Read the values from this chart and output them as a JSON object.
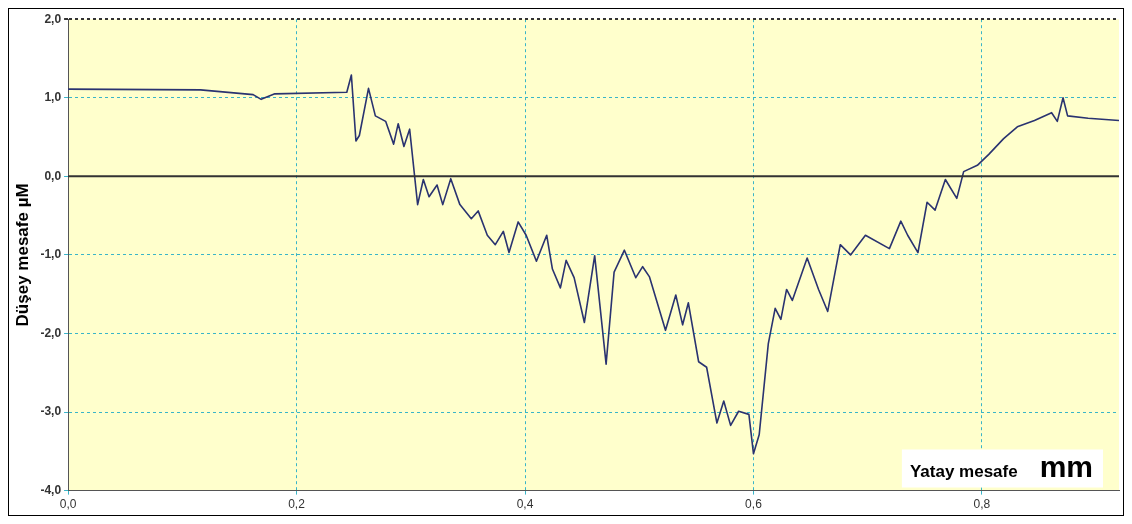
{
  "chart_data": {
    "type": "line",
    "xlabel": "Yatay mesafe mm",
    "ylabel": "Düşey mesafe µM",
    "xlim": [
      0,
      0.92
    ],
    "ylim": [
      -4,
      2
    ],
    "xticks": [
      {
        "value": 0,
        "label": "0,0"
      },
      {
        "value": 0.2,
        "label": "0,2"
      },
      {
        "value": 0.4,
        "label": "0,4"
      },
      {
        "value": 0.6,
        "label": "0,6"
      },
      {
        "value": 0.8,
        "label": "0,8"
      }
    ],
    "yticks": [
      {
        "value": -4,
        "label": "-4,0"
      },
      {
        "value": -3,
        "label": "-3,0"
      },
      {
        "value": -2,
        "label": "-2,0"
      },
      {
        "value": -1,
        "label": "-1,0"
      },
      {
        "value": 0,
        "label": "0,0"
      },
      {
        "value": 1,
        "label": "1,0"
      },
      {
        "value": 2,
        "label": "2,0"
      }
    ],
    "ref_lines": [
      {
        "axis": "y",
        "value": 0,
        "color": "#333333"
      }
    ],
    "grid": true,
    "legend": false,
    "marker": "none",
    "line_style": "solid",
    "series": [
      {
        "color": "#2a3370",
        "x": [
          0,
          0.116,
          0.162,
          0.169,
          0.181,
          0.244,
          0.248,
          0.252,
          0.255,
          0.263,
          0.269,
          0.278,
          0.285,
          0.289,
          0.294,
          0.299,
          0.306,
          0.311,
          0.316,
          0.323,
          0.328,
          0.335,
          0.343,
          0.353,
          0.359,
          0.367,
          0.374,
          0.381,
          0.386,
          0.394,
          0.401,
          0.41,
          0.419,
          0.424,
          0.431,
          0.436,
          0.443,
          0.452,
          0.461,
          0.471,
          0.478,
          0.487,
          0.497,
          0.503,
          0.509,
          0.523,
          0.532,
          0.538,
          0.543,
          0.552,
          0.559,
          0.568,
          0.574,
          0.58,
          0.587,
          0.596,
          0.6,
          0.605,
          0.613,
          0.619,
          0.624,
          0.629,
          0.634,
          0.647,
          0.657,
          0.665,
          0.676,
          0.685,
          0.698,
          0.719,
          0.729,
          0.735,
          0.744,
          0.752,
          0.759,
          0.768,
          0.778,
          0.784,
          0.796,
          0.806,
          0.819,
          0.831,
          0.846,
          0.861,
          0.866,
          0.871,
          0.875,
          0.893,
          0.92
        ],
        "values": [
          1.11,
          1.1,
          1.04,
          0.98,
          1.05,
          1.07,
          1.29,
          0.45,
          0.52,
          1.12,
          0.77,
          0.7,
          0.41,
          0.67,
          0.38,
          0.6,
          -0.36,
          -0.04,
          -0.26,
          -0.11,
          -0.36,
          -0.03,
          -0.36,
          -0.54,
          -0.44,
          -0.75,
          -0.87,
          -0.7,
          -0.97,
          -0.58,
          -0.75,
          -1.08,
          -0.75,
          -1.18,
          -1.42,
          -1.07,
          -1.29,
          -1.86,
          -1.01,
          -2.39,
          -1.22,
          -0.94,
          -1.29,
          -1.15,
          -1.28,
          -1.96,
          -1.51,
          -1.89,
          -1.61,
          -2.36,
          -2.43,
          -3.14,
          -2.86,
          -3.17,
          -2.99,
          -3.03,
          -3.53,
          -3.29,
          -2.13,
          -1.68,
          -1.82,
          -1.44,
          -1.58,
          -1.04,
          -1.44,
          -1.72,
          -0.87,
          -1,
          -0.75,
          -0.92,
          -0.57,
          -0.75,
          -0.97,
          -0.33,
          -0.43,
          -0.04,
          -0.28,
          0.06,
          0.14,
          0.28,
          0.48,
          0.63,
          0.71,
          0.81,
          0.7,
          1,
          0.77,
          0.74,
          0.71
        ]
      }
    ]
  }
}
